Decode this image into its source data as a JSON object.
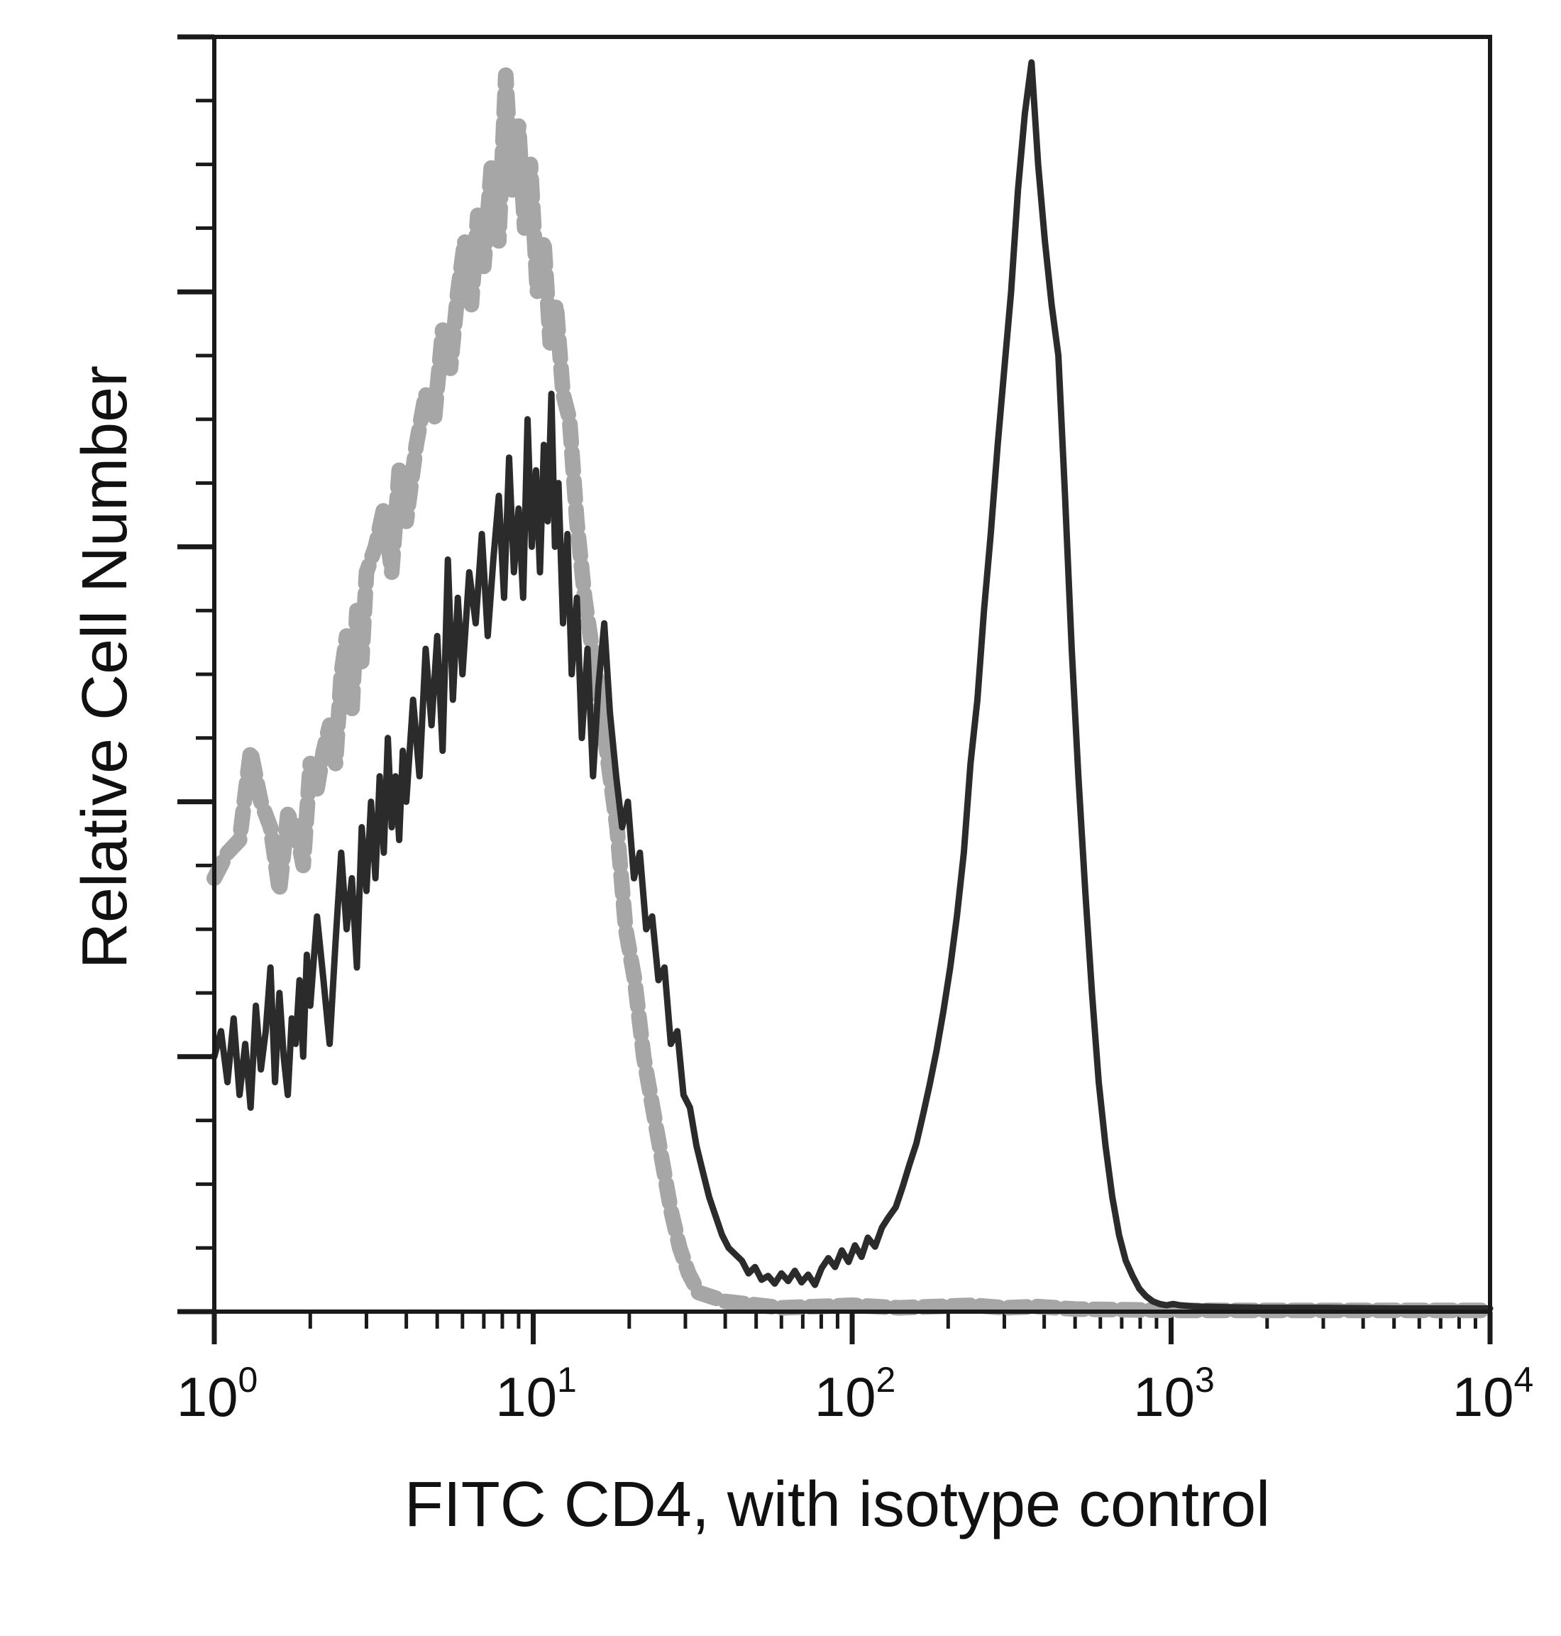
{
  "chart_data": {
    "type": "line",
    "subtype": "flow-cytometry-histogram",
    "xlabel": "FITC CD4, with isotype control",
    "ylabel": "Relative Cell Number",
    "x_scale": "log",
    "xlim": [
      1,
      10000
    ],
    "ylim": [
      0,
      100
    ],
    "x_tick_labels": [
      {
        "base": "10",
        "exp": "0"
      },
      {
        "base": "10",
        "exp": "1"
      },
      {
        "base": "10",
        "exp": "2"
      },
      {
        "base": "10",
        "exp": "3"
      },
      {
        "base": "10",
        "exp": "4"
      }
    ],
    "grid": false,
    "legend": "none",
    "series": [
      {
        "style": "gray-dashed",
        "color": "#a6a6a6",
        "points": [
          [
            1.0,
            34
          ],
          [
            1.1,
            36
          ],
          [
            1.2,
            37
          ],
          [
            1.3,
            44
          ],
          [
            1.4,
            40
          ],
          [
            1.5,
            38
          ],
          [
            1.6,
            33
          ],
          [
            1.7,
            39
          ],
          [
            1.8,
            38
          ],
          [
            1.9,
            35
          ],
          [
            2.0,
            43
          ],
          [
            2.1,
            41
          ],
          [
            2.2,
            44
          ],
          [
            2.3,
            46
          ],
          [
            2.4,
            43
          ],
          [
            2.5,
            50
          ],
          [
            2.6,
            53
          ],
          [
            2.7,
            47
          ],
          [
            2.8,
            55
          ],
          [
            2.9,
            51
          ],
          [
            3.0,
            58
          ],
          [
            3.2,
            60
          ],
          [
            3.4,
            63
          ],
          [
            3.6,
            58
          ],
          [
            3.8,
            66
          ],
          [
            4.0,
            62
          ],
          [
            4.3,
            68
          ],
          [
            4.6,
            72
          ],
          [
            4.9,
            70
          ],
          [
            5.2,
            77
          ],
          [
            5.5,
            74
          ],
          [
            5.8,
            80
          ],
          [
            6.1,
            84
          ],
          [
            6.4,
            79
          ],
          [
            6.7,
            86
          ],
          [
            7.0,
            82
          ],
          [
            7.4,
            90
          ],
          [
            7.8,
            84
          ],
          [
            8.2,
            97
          ],
          [
            8.6,
            88
          ],
          [
            9.0,
            93
          ],
          [
            9.4,
            85
          ],
          [
            9.8,
            90
          ],
          [
            10.3,
            80
          ],
          [
            10.8,
            84
          ],
          [
            11.3,
            76
          ],
          [
            11.8,
            79
          ],
          [
            12.4,
            72
          ],
          [
            13.0,
            70
          ],
          [
            13.7,
            62
          ],
          [
            14.5,
            56
          ],
          [
            15.3,
            52
          ],
          [
            16.2,
            48
          ],
          [
            17.2,
            43
          ],
          [
            18.3,
            38
          ],
          [
            19.5,
            30
          ],
          [
            20.8,
            26
          ],
          [
            22.2,
            20
          ],
          [
            23.7,
            16
          ],
          [
            25.3,
            12
          ],
          [
            27.0,
            8
          ],
          [
            28.8,
            5
          ],
          [
            30.7,
            3
          ],
          [
            33,
            1.5
          ],
          [
            40,
            0.8
          ],
          [
            60,
            0.3
          ],
          [
            100,
            0.5
          ],
          [
            140,
            0.3
          ],
          [
            240,
            0.5
          ],
          [
            300,
            0.3
          ],
          [
            380,
            0.4
          ],
          [
            500,
            0.2
          ],
          [
            1000,
            0.1
          ],
          [
            10000,
            0.1
          ]
        ]
      },
      {
        "style": "black-solid",
        "color": "#2b2b2b",
        "points": [
          [
            1.0,
            20
          ],
          [
            1.05,
            22
          ],
          [
            1.1,
            18
          ],
          [
            1.15,
            23
          ],
          [
            1.2,
            17
          ],
          [
            1.25,
            21
          ],
          [
            1.3,
            16
          ],
          [
            1.35,
            24
          ],
          [
            1.4,
            19
          ],
          [
            1.45,
            22
          ],
          [
            1.5,
            27
          ],
          [
            1.55,
            18
          ],
          [
            1.6,
            25
          ],
          [
            1.65,
            20
          ],
          [
            1.7,
            17
          ],
          [
            1.75,
            23
          ],
          [
            1.8,
            21
          ],
          [
            1.85,
            26
          ],
          [
            1.9,
            20
          ],
          [
            1.95,
            28
          ],
          [
            2.0,
            24
          ],
          [
            2.1,
            31
          ],
          [
            2.2,
            26
          ],
          [
            2.3,
            21
          ],
          [
            2.4,
            29
          ],
          [
            2.5,
            36
          ],
          [
            2.6,
            30
          ],
          [
            2.7,
            34
          ],
          [
            2.8,
            27
          ],
          [
            2.9,
            38
          ],
          [
            3.0,
            33
          ],
          [
            3.1,
            40
          ],
          [
            3.2,
            34
          ],
          [
            3.3,
            42
          ],
          [
            3.4,
            36
          ],
          [
            3.5,
            45
          ],
          [
            3.6,
            38
          ],
          [
            3.7,
            42
          ],
          [
            3.8,
            37
          ],
          [
            3.9,
            44
          ],
          [
            4.0,
            40
          ],
          [
            4.2,
            48
          ],
          [
            4.4,
            42
          ],
          [
            4.6,
            52
          ],
          [
            4.8,
            46
          ],
          [
            5.0,
            53
          ],
          [
            5.2,
            44
          ],
          [
            5.4,
            59
          ],
          [
            5.6,
            48
          ],
          [
            5.8,
            56
          ],
          [
            6.0,
            50
          ],
          [
            6.3,
            58
          ],
          [
            6.6,
            54
          ],
          [
            6.9,
            61
          ],
          [
            7.2,
            53
          ],
          [
            7.5,
            59
          ],
          [
            7.8,
            64
          ],
          [
            8.1,
            56
          ],
          [
            8.4,
            67
          ],
          [
            8.7,
            58
          ],
          [
            9.0,
            63
          ],
          [
            9.3,
            56
          ],
          [
            9.6,
            70
          ],
          [
            9.9,
            60
          ],
          [
            10.2,
            66
          ],
          [
            10.5,
            58
          ],
          [
            10.8,
            68
          ],
          [
            11.1,
            62
          ],
          [
            11.4,
            72
          ],
          [
            11.7,
            60
          ],
          [
            12.0,
            65
          ],
          [
            12.4,
            54
          ],
          [
            12.8,
            61
          ],
          [
            13.2,
            50
          ],
          [
            13.7,
            56
          ],
          [
            14.2,
            45
          ],
          [
            14.8,
            52
          ],
          [
            15.4,
            42
          ],
          [
            16.0,
            49
          ],
          [
            16.7,
            54
          ],
          [
            17.4,
            47
          ],
          [
            18.2,
            42
          ],
          [
            19.0,
            38
          ],
          [
            19.8,
            40
          ],
          [
            20.7,
            34
          ],
          [
            21.6,
            36
          ],
          [
            22.6,
            30
          ],
          [
            23.6,
            31
          ],
          [
            24.7,
            26
          ],
          [
            25.8,
            27
          ],
          [
            27.0,
            21
          ],
          [
            28.3,
            22
          ],
          [
            29.6,
            17
          ],
          [
            31.0,
            16
          ],
          [
            32.5,
            13
          ],
          [
            34.0,
            11
          ],
          [
            35.6,
            9
          ],
          [
            37.3,
            7.5
          ],
          [
            39.1,
            6
          ],
          [
            41.0,
            5
          ],
          [
            43.0,
            4.5
          ],
          [
            45.1,
            4
          ],
          [
            47.3,
            3
          ],
          [
            49.6,
            3.5
          ],
          [
            52.0,
            2.5
          ],
          [
            54.5,
            2.8
          ],
          [
            57.2,
            2.2
          ],
          [
            60.0,
            3
          ],
          [
            63.0,
            2.4
          ],
          [
            66.1,
            3.2
          ],
          [
            69.4,
            2.3
          ],
          [
            72.8,
            2.9
          ],
          [
            76.4,
            2.1
          ],
          [
            80.2,
            3.4
          ],
          [
            84.2,
            4.2
          ],
          [
            88.4,
            3.5
          ],
          [
            92.8,
            4.8
          ],
          [
            97.4,
            3.9
          ],
          [
            102,
            5.2
          ],
          [
            107,
            4.3
          ],
          [
            112,
            5.8
          ],
          [
            118,
            5.1
          ],
          [
            124,
            6.6
          ],
          [
            130,
            7.4
          ],
          [
            137,
            8.2
          ],
          [
            144,
            9.8
          ],
          [
            151,
            11.5
          ],
          [
            159,
            13.2
          ],
          [
            167,
            15.5
          ],
          [
            175,
            17.8
          ],
          [
            184,
            20.5
          ],
          [
            193,
            23.5
          ],
          [
            203,
            27
          ],
          [
            213,
            31
          ],
          [
            224,
            36
          ],
          [
            235,
            43
          ],
          [
            247,
            48
          ],
          [
            259,
            55
          ],
          [
            272,
            61
          ],
          [
            286,
            68
          ],
          [
            300,
            74
          ],
          [
            315,
            80
          ],
          [
            331,
            88
          ],
          [
            348,
            94
          ],
          [
            365,
            98
          ],
          [
            383,
            90
          ],
          [
            402,
            84
          ],
          [
            422,
            79
          ],
          [
            443,
            75
          ],
          [
            465,
            64
          ],
          [
            488,
            52
          ],
          [
            512,
            42
          ],
          [
            538,
            33
          ],
          [
            565,
            25
          ],
          [
            593,
            18
          ],
          [
            623,
            13
          ],
          [
            654,
            9
          ],
          [
            687,
            6
          ],
          [
            721,
            4
          ],
          [
            757,
            2.8
          ],
          [
            795,
            1.8
          ],
          [
            835,
            1.2
          ],
          [
            877,
            0.8
          ],
          [
            921,
            0.6
          ],
          [
            967,
            0.5
          ],
          [
            1015,
            0.6
          ],
          [
            1066,
            0.5
          ],
          [
            1200,
            0.4
          ],
          [
            1500,
            0.35
          ],
          [
            2000,
            0.3
          ],
          [
            3000,
            0.3
          ],
          [
            5000,
            0.25
          ],
          [
            10000,
            0.25
          ]
        ]
      }
    ]
  }
}
